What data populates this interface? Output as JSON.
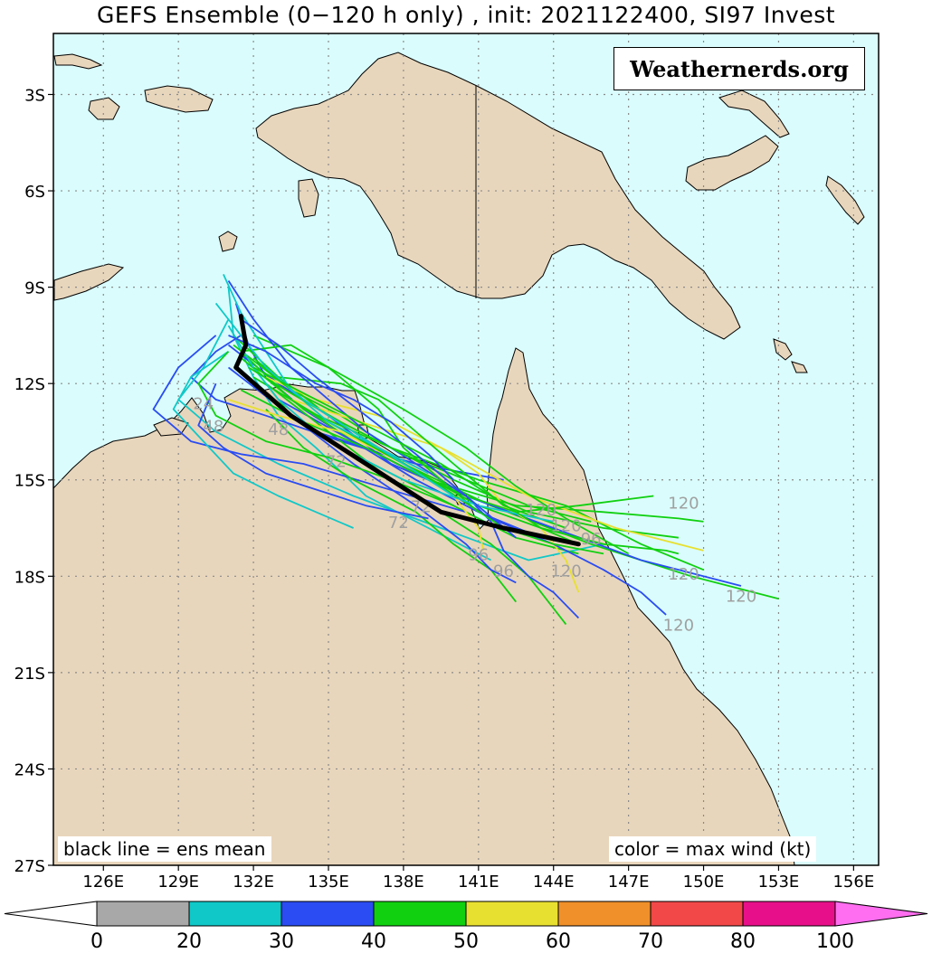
{
  "title": "GEFS Ensemble (0−120 h only) , init: 2021122400, SI97 Invest",
  "watermark": "Weathernerds.org",
  "notes": {
    "left": "black line = ens mean",
    "right": "color = max wind (kt)"
  },
  "axes": {
    "lat_labels": [
      "3S",
      "6S",
      "9S",
      "12S",
      "15S",
      "18S",
      "21S",
      "24S",
      "27S"
    ],
    "lon_labels": [
      "126E",
      "129E",
      "132E",
      "135E",
      "138E",
      "141E",
      "144E",
      "147E",
      "150E",
      "153E",
      "156E"
    ]
  },
  "colorbar": {
    "ticks": [
      "0",
      "20",
      "30",
      "40",
      "50",
      "60",
      "70",
      "80",
      "100"
    ],
    "colors": [
      "#a8a8a8",
      "#10c8c8",
      "#2a4cf2",
      "#10d010",
      "#e8e030",
      "#f0902a",
      "#f24848",
      "#e8108a"
    ],
    "under_color": "#ffffff",
    "over_color": "#ff6ef0"
  },
  "colors": {
    "ocean": "#dafcfc",
    "land": "#e8d6bc",
    "grid": "#8a8a8a",
    "mean": "#000000",
    "hour_label": "#a0a0a0"
  },
  "chart_data": {
    "type": "map-tracks",
    "mean_track": {
      "name": "ens mean",
      "lon": [
        131.5,
        131.7,
        131.3,
        133.5,
        135.5,
        139.5,
        142.0,
        145.0
      ],
      "lat": [
        -9.9,
        -10.8,
        -11.5,
        -13.0,
        -14.0,
        -16.0,
        -16.5,
        -17.0
      ]
    },
    "member_tracks": [
      {
        "wind_class": 30,
        "lon": [
          131.3,
          131.8,
          132.5,
          134.0,
          136.0,
          138.5,
          141.0,
          143.5
        ],
        "lat": [
          -9.5,
          -10.8,
          -11.8,
          -12.8,
          -13.8,
          -15.0,
          -16.0,
          -16.8
        ]
      },
      {
        "wind_class": 20,
        "lon": [
          131.0,
          131.2,
          132.0,
          133.0,
          134.5,
          136.5,
          139.0,
          141.5
        ],
        "lat": [
          -9.0,
          -10.5,
          -11.8,
          -13.0,
          -14.0,
          -15.5,
          -16.5,
          -17.5
        ]
      },
      {
        "wind_class": 30,
        "lon": [
          131.5,
          130.5,
          129.5,
          130.5,
          132.5,
          135.5,
          138.5,
          142.0
        ],
        "lat": [
          -10.5,
          -11.0,
          -11.8,
          -12.5,
          -13.0,
          -13.8,
          -14.5,
          -15.0
        ]
      },
      {
        "wind_class": 20,
        "lon": [
          131.0,
          130.0,
          129.0,
          130.5,
          133.0,
          136.0,
          139.5,
          143.0,
          146.0
        ],
        "lat": [
          -10.0,
          -11.5,
          -12.5,
          -13.5,
          -14.5,
          -15.5,
          -16.5,
          -17.5,
          -17.0
        ]
      },
      {
        "wind_class": 40,
        "lon": [
          131.5,
          132.5,
          133.5,
          135.5,
          138.0,
          140.5,
          142.5,
          145.0
        ],
        "lat": [
          -11.0,
          -12.0,
          -13.0,
          -14.0,
          -15.0,
          -16.0,
          -16.8,
          -17.3
        ]
      },
      {
        "wind_class": 30,
        "lon": [
          130.5,
          129.0,
          128.0,
          129.5,
          131.5,
          134.0,
          137.0,
          140.5
        ],
        "lat": [
          -10.5,
          -11.5,
          -12.8,
          -13.8,
          -14.2,
          -14.5,
          -15.2,
          -16.0
        ]
      },
      {
        "wind_class": 20,
        "lon": [
          131.0,
          129.5,
          128.8,
          130.0,
          131.2,
          133.0,
          134.5,
          136.0
        ],
        "lat": [
          -11.0,
          -11.8,
          -12.8,
          -13.8,
          -14.8,
          -15.5,
          -16.0,
          -16.5
        ]
      },
      {
        "wind_class": 40,
        "lon": [
          132.0,
          133.5,
          135.5,
          137.5,
          140.0,
          143.0,
          146.0,
          149.0
        ],
        "lat": [
          -11.2,
          -12.2,
          -13.0,
          -14.0,
          -15.0,
          -16.0,
          -16.5,
          -16.8
        ]
      },
      {
        "wind_class": 40,
        "lon": [
          131.2,
          133.0,
          135.0,
          138.0,
          141.5,
          145.5,
          149.5,
          153.0
        ],
        "lat": [
          -10.5,
          -11.8,
          -13.0,
          -14.5,
          -15.8,
          -17.0,
          -18.0,
          -18.7
        ]
      },
      {
        "wind_class": 30,
        "lon": [
          131.0,
          133.0,
          135.0,
          137.5,
          140.5,
          144.0,
          147.5,
          151.5
        ],
        "lat": [
          -10.8,
          -12.0,
          -13.0,
          -14.5,
          -15.5,
          -16.5,
          -17.5,
          -18.3
        ]
      },
      {
        "wind_class": 40,
        "lon": [
          131.5,
          133.5,
          136.0,
          139.0,
          142.5,
          146.0,
          149.0,
          150.0
        ],
        "lat": [
          -11.0,
          -12.5,
          -13.8,
          -15.0,
          -15.8,
          -16.0,
          -16.2,
          -16.3
        ]
      },
      {
        "wind_class": 40,
        "lon": [
          131.5,
          134.0,
          137.5,
          141.0,
          144.5,
          147.5,
          150.0
        ],
        "lat": [
          -11.2,
          -12.8,
          -14.0,
          -15.0,
          -15.8,
          -17.0,
          -17.8
        ]
      },
      {
        "wind_class": 50,
        "lon": [
          132.5,
          134.5,
          137.0,
          140.0,
          143.0,
          146.5,
          150.0
        ],
        "lat": [
          -11.8,
          -12.5,
          -13.0,
          -14.2,
          -15.5,
          -16.5,
          -17.2
        ]
      },
      {
        "wind_class": 50,
        "lon": [
          133.5,
          135.5,
          137.5,
          139.5,
          141.0,
          142.0,
          143.5,
          144.5,
          145.0
        ],
        "lat": [
          -12.5,
          -13.0,
          -13.5,
          -14.0,
          -14.8,
          -15.8,
          -16.5,
          -17.5,
          -18.5
        ]
      },
      {
        "wind_class": 30,
        "lon": [
          133.0,
          136.0,
          139.0,
          141.5,
          144.0,
          146.0,
          147.5,
          148.5
        ],
        "lat": [
          -12.5,
          -13.8,
          -15.0,
          -16.2,
          -17.0,
          -17.8,
          -18.5,
          -19.2
        ]
      },
      {
        "wind_class": 40,
        "lon": [
          132.5,
          135.0,
          137.5,
          139.5,
          141.5,
          143.0,
          144.5
        ],
        "lat": [
          -12.0,
          -13.5,
          -15.0,
          -16.0,
          -17.0,
          -18.0,
          -19.5
        ]
      },
      {
        "wind_class": 30,
        "lon": [
          134.5,
          136.5,
          138.5,
          140.5,
          141.5,
          142.0,
          143.0,
          144.0,
          145.0
        ],
        "lat": [
          -13.5,
          -14.0,
          -14.8,
          -15.5,
          -16.3,
          -17.2,
          -18.0,
          -18.5,
          -19.3
        ]
      },
      {
        "wind_class": 40,
        "lon": [
          132.5,
          134.0,
          136.0,
          138.5,
          140.0,
          141.5,
          142.5
        ],
        "lat": [
          -12.8,
          -14.0,
          -15.0,
          -16.0,
          -17.0,
          -17.8,
          -18.8
        ]
      },
      {
        "wind_class": 50,
        "lon": [
          131.0,
          133.0,
          135.5,
          138.0,
          140.0,
          141.0,
          141.2
        ],
        "lat": [
          -12.5,
          -13.0,
          -13.5,
          -14.5,
          -15.5,
          -16.5,
          -17.2
        ]
      },
      {
        "wind_class": 40,
        "lon": [
          131.5,
          134.0,
          136.5,
          138.5,
          140.5,
          142.5,
          145.0,
          148.0
        ],
        "lat": [
          -12.2,
          -13.2,
          -14.0,
          -14.8,
          -15.5,
          -16.0,
          -15.8,
          -15.5
        ]
      },
      {
        "wind_class": 40,
        "lon": [
          132.0,
          135.0,
          138.0,
          141.0,
          143.5,
          146.0,
          148.5,
          149.0
        ],
        "lat": [
          -11.8,
          -13.2,
          -14.5,
          -15.8,
          -16.5,
          -17.0,
          -17.2,
          -17.3
        ]
      },
      {
        "wind_class": 30,
        "lon": [
          131.0,
          133.5,
          136.0,
          138.5,
          140.5,
          141.5,
          142.5
        ],
        "lat": [
          -11.5,
          -13.0,
          -14.5,
          -15.8,
          -17.0,
          -17.8,
          -18.2
        ]
      },
      {
        "wind_class": 40,
        "lon": [
          131.2,
          134.0,
          137.0,
          139.5,
          142.0,
          144.0,
          146.0
        ],
        "lat": [
          -10.8,
          -12.5,
          -14.0,
          -15.2,
          -16.5,
          -17.0,
          -17.3
        ]
      },
      {
        "wind_class": 40,
        "lon": [
          132.0,
          135.0,
          138.0,
          140.5,
          142.5,
          144.5,
          147.0
        ],
        "lat": [
          -10.5,
          -11.5,
          -12.8,
          -14.0,
          -15.2,
          -16.2,
          -17.3
        ]
      },
      {
        "wind_class": 40,
        "lon": [
          133.0,
          135.5,
          137.0,
          138.5,
          140.0,
          142.0,
          144.5
        ],
        "lat": [
          -11.8,
          -12.0,
          -12.5,
          -13.5,
          -14.5,
          -15.8,
          -16.5
        ]
      },
      {
        "wind_class": 30,
        "lon": [
          131.0,
          132.0,
          133.5,
          135.0,
          136.5,
          138.5,
          140.5
        ],
        "lat": [
          -8.8,
          -10.0,
          -11.5,
          -12.5,
          -13.5,
          -14.5,
          -15.5
        ]
      },
      {
        "wind_class": 20,
        "lon": [
          130.8,
          131.5,
          132.5,
          133.5,
          135.0,
          137.0,
          139.0
        ],
        "lat": [
          -8.6,
          -9.8,
          -11.0,
          -12.2,
          -13.2,
          -14.0,
          -14.8
        ]
      },
      {
        "wind_class": 40,
        "lon": [
          131.5,
          133.5,
          135.0,
          137.0,
          138.0,
          139.5,
          141.0
        ],
        "lat": [
          -11.0,
          -10.8,
          -11.5,
          -12.8,
          -14.0,
          -15.0,
          -16.0
        ]
      },
      {
        "wind_class": 40,
        "lon": [
          131.0,
          129.8,
          130.5,
          132.5,
          135.0,
          137.5,
          140.0
        ],
        "lat": [
          -11.0,
          -12.0,
          -13.0,
          -13.8,
          -14.3,
          -15.0,
          -15.8
        ]
      },
      {
        "wind_class": 30,
        "lon": [
          130.5,
          129.8,
          130.8,
          132.5,
          134.5,
          136.5,
          139.0
        ],
        "lat": [
          -12.0,
          -13.3,
          -14.0,
          -14.8,
          -15.3,
          -15.8,
          -16.2
        ]
      },
      {
        "wind_class": 20,
        "lon": [
          131.0,
          132.0,
          133.0,
          134.5,
          136.0,
          138.0,
          141.0,
          144.0
        ],
        "lat": [
          -10.2,
          -11.5,
          -12.5,
          -13.5,
          -14.2,
          -15.0,
          -15.8,
          -16.3
        ]
      },
      {
        "wind_class": 40,
        "lon": [
          131.8,
          133.5,
          135.5,
          138.0,
          140.5,
          143.0,
          145.5
        ],
        "lat": [
          -11.5,
          -12.3,
          -13.2,
          -14.2,
          -15.0,
          -15.8,
          -16.3
        ]
      },
      {
        "wind_class": 30,
        "lon": [
          131.5,
          133.0,
          134.5,
          136.5,
          138.5,
          140.5,
          142.5
        ],
        "lat": [
          -10.0,
          -10.8,
          -11.8,
          -13.0,
          -14.2,
          -15.5,
          -16.8
        ]
      },
      {
        "wind_class": 20,
        "lon": [
          130.5,
          131.5,
          132.5,
          134.0,
          136.0,
          138.0,
          140.0
        ],
        "lat": [
          -9.5,
          -10.5,
          -11.5,
          -12.5,
          -13.5,
          -14.5,
          -15.5
        ]
      },
      {
        "wind_class": 40,
        "lon": [
          132.0,
          134.5,
          137.0,
          139.5,
          141.5,
          143.5,
          145.0
        ],
        "lat": [
          -11.5,
          -12.5,
          -13.5,
          -14.5,
          -15.5,
          -16.5,
          -17.0
        ]
      },
      {
        "wind_class": 30,
        "lon": [
          131.0,
          132.5,
          134.5,
          136.0,
          137.5,
          139.0,
          140.0
        ],
        "lat": [
          -10.5,
          -11.0,
          -12.0,
          -12.5,
          -13.2,
          -14.2,
          -15.0
        ]
      }
    ],
    "hour_labels": [
      {
        "text": "24",
        "lon": 130.0,
        "lat": -12.8
      },
      {
        "text": "48",
        "lon": 130.4,
        "lat": -13.5
      },
      {
        "text": "48",
        "lon": 133.0,
        "lat": -13.6
      },
      {
        "text": "72",
        "lon": 135.3,
        "lat": -14.6
      },
      {
        "text": "72",
        "lon": 137.8,
        "lat": -16.5
      },
      {
        "text": "72",
        "lon": 138.7,
        "lat": -16.0
      },
      {
        "text": "96",
        "lon": 141.0,
        "lat": -17.5
      },
      {
        "text": "96",
        "lon": 142.0,
        "lat": -18.0
      },
      {
        "text": "96",
        "lon": 145.5,
        "lat": -17.0
      },
      {
        "text": "120",
        "lon": 143.5,
        "lat": -16.1
      },
      {
        "text": "120",
        "lon": 144.5,
        "lat": -16.6
      },
      {
        "text": "120",
        "lon": 144.5,
        "lat": -18.0
      },
      {
        "text": "120",
        "lon": 149.2,
        "lat": -15.9
      },
      {
        "text": "120",
        "lon": 149.2,
        "lat": -18.1
      },
      {
        "text": "120",
        "lon": 151.5,
        "lat": -18.8
      },
      {
        "text": "120",
        "lon": 149.0,
        "lat": -19.7
      }
    ],
    "lon_range": [
      124,
      157
    ],
    "lat_range": [
      -27,
      -1.1
    ],
    "grid": true
  }
}
